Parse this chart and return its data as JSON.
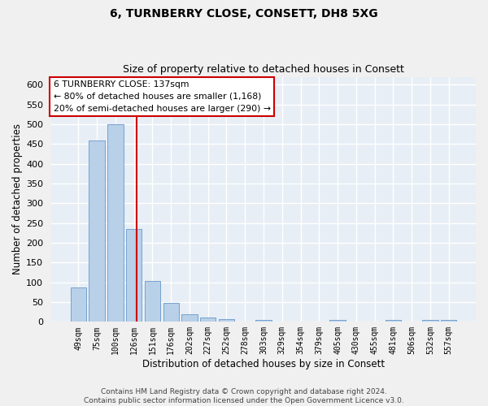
{
  "title_line1": "6, TURNBERRY CLOSE, CONSETT, DH8 5XG",
  "title_line2": "Size of property relative to detached houses in Consett",
  "xlabel": "Distribution of detached houses by size in Consett",
  "ylabel": "Number of detached properties",
  "categories": [
    "49sqm",
    "75sqm",
    "100sqm",
    "126sqm",
    "151sqm",
    "176sqm",
    "202sqm",
    "227sqm",
    "252sqm",
    "278sqm",
    "303sqm",
    "329sqm",
    "354sqm",
    "379sqm",
    "405sqm",
    "430sqm",
    "455sqm",
    "481sqm",
    "506sqm",
    "532sqm",
    "557sqm"
  ],
  "values": [
    88,
    458,
    500,
    235,
    103,
    47,
    19,
    11,
    7,
    0,
    5,
    0,
    0,
    0,
    5,
    0,
    0,
    5,
    0,
    5,
    5
  ],
  "bar_color": "#b8d0e8",
  "bar_edge_color": "#6699cc",
  "vline_color": "#cc0000",
  "vline_x": 3.15,
  "ylim": [
    0,
    620
  ],
  "yticks": [
    0,
    50,
    100,
    150,
    200,
    250,
    300,
    350,
    400,
    450,
    500,
    550,
    600
  ],
  "annotation_title": "6 TURNBERRY CLOSE: 137sqm",
  "annotation_line1": "← 80% of detached houses are smaller (1,168)",
  "annotation_line2": "20% of semi-detached houses are larger (290) →",
  "annotation_box_color": "#ffffff",
  "annotation_box_edge": "#cc0000",
  "footer_line1": "Contains HM Land Registry data © Crown copyright and database right 2024.",
  "footer_line2": "Contains public sector information licensed under the Open Government Licence v3.0.",
  "bg_color": "#e8eef5",
  "fig_bg_color": "#f0f0f0",
  "grid_color": "#ffffff",
  "title_fontsize": 10,
  "subtitle_fontsize": 9,
  "xlabel_fontsize": 8.5,
  "ylabel_fontsize": 8.5,
  "tick_fontsize": 8,
  "xtick_fontsize": 7,
  "footer_fontsize": 6.5,
  "ann_fontsize": 7.8
}
